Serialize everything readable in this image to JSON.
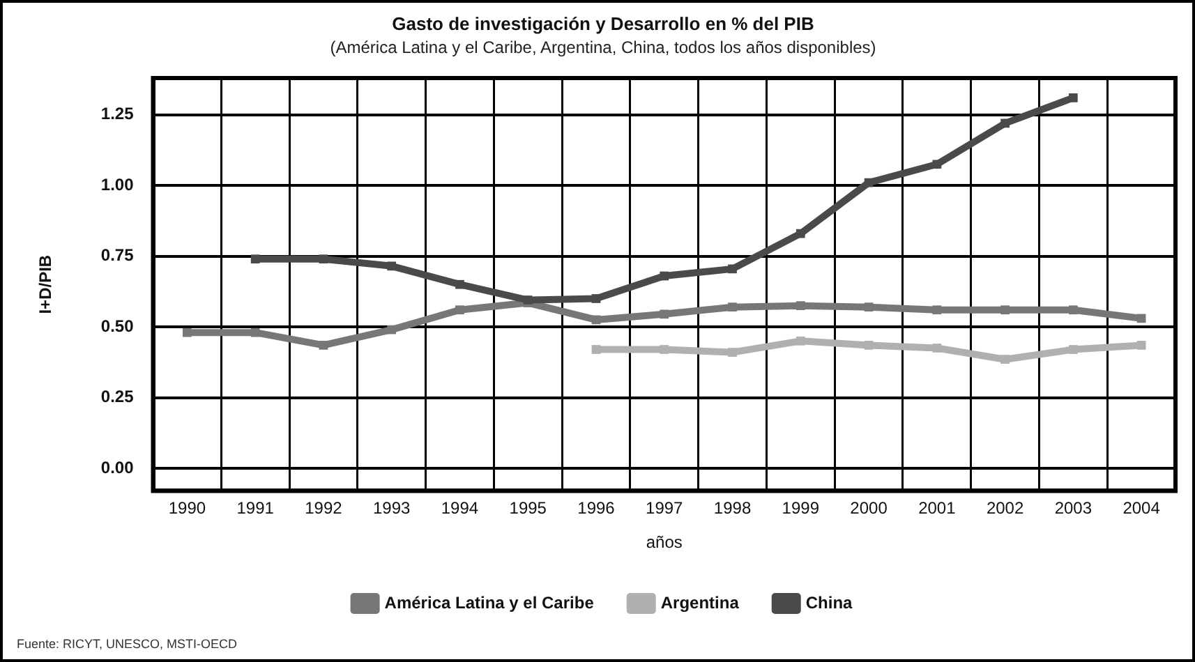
{
  "chart_data": {
    "type": "line",
    "title": "Gasto de investigación y Desarrollo en % del PIB",
    "subtitle": "(América Latina y el Caribe, Argentina, China, todos los años disponibles)",
    "xlabel": "años",
    "ylabel": "I+D/PIB",
    "categories": [
      "1990",
      "1991",
      "1992",
      "1993",
      "1994",
      "1995",
      "1996",
      "1997",
      "1998",
      "1999",
      "2000",
      "2001",
      "2002",
      "2003",
      "2004"
    ],
    "series": [
      {
        "name": "América Latina y el Caribe",
        "color": "#777777",
        "values": [
          0.48,
          0.48,
          0.435,
          0.49,
          0.56,
          0.585,
          0.525,
          0.545,
          0.57,
          0.575,
          0.57,
          0.56,
          0.56,
          0.56,
          0.53
        ]
      },
      {
        "name": "Argentina",
        "color": "#b0b0b0",
        "values": [
          null,
          null,
          null,
          null,
          null,
          null,
          0.42,
          0.42,
          0.41,
          0.45,
          0.435,
          0.425,
          0.385,
          0.42,
          0.435
        ]
      },
      {
        "name": "China",
        "color": "#4a4a4a",
        "values": [
          null,
          0.74,
          0.74,
          0.715,
          0.65,
          0.595,
          0.6,
          0.68,
          0.705,
          0.83,
          1.01,
          1.075,
          1.22,
          1.31,
          null
        ]
      }
    ],
    "ylim": [
      -0.08,
      1.38
    ],
    "yticks": [
      {
        "value": 0,
        "label": "0.00"
      },
      {
        "value": 0.25,
        "label": "0.25"
      },
      {
        "value": 0.5,
        "label": "0.50"
      },
      {
        "value": 0.75,
        "label": "0.75"
      },
      {
        "value": 1,
        "label": "1.00"
      },
      {
        "value": 1.25,
        "label": "1.25"
      }
    ],
    "grid": true,
    "legend": "bottom",
    "marker": "square",
    "line_style": "solid",
    "annotations": [
      "Fuente: RICYT, UNESCO, MSTI-OECD"
    ]
  }
}
